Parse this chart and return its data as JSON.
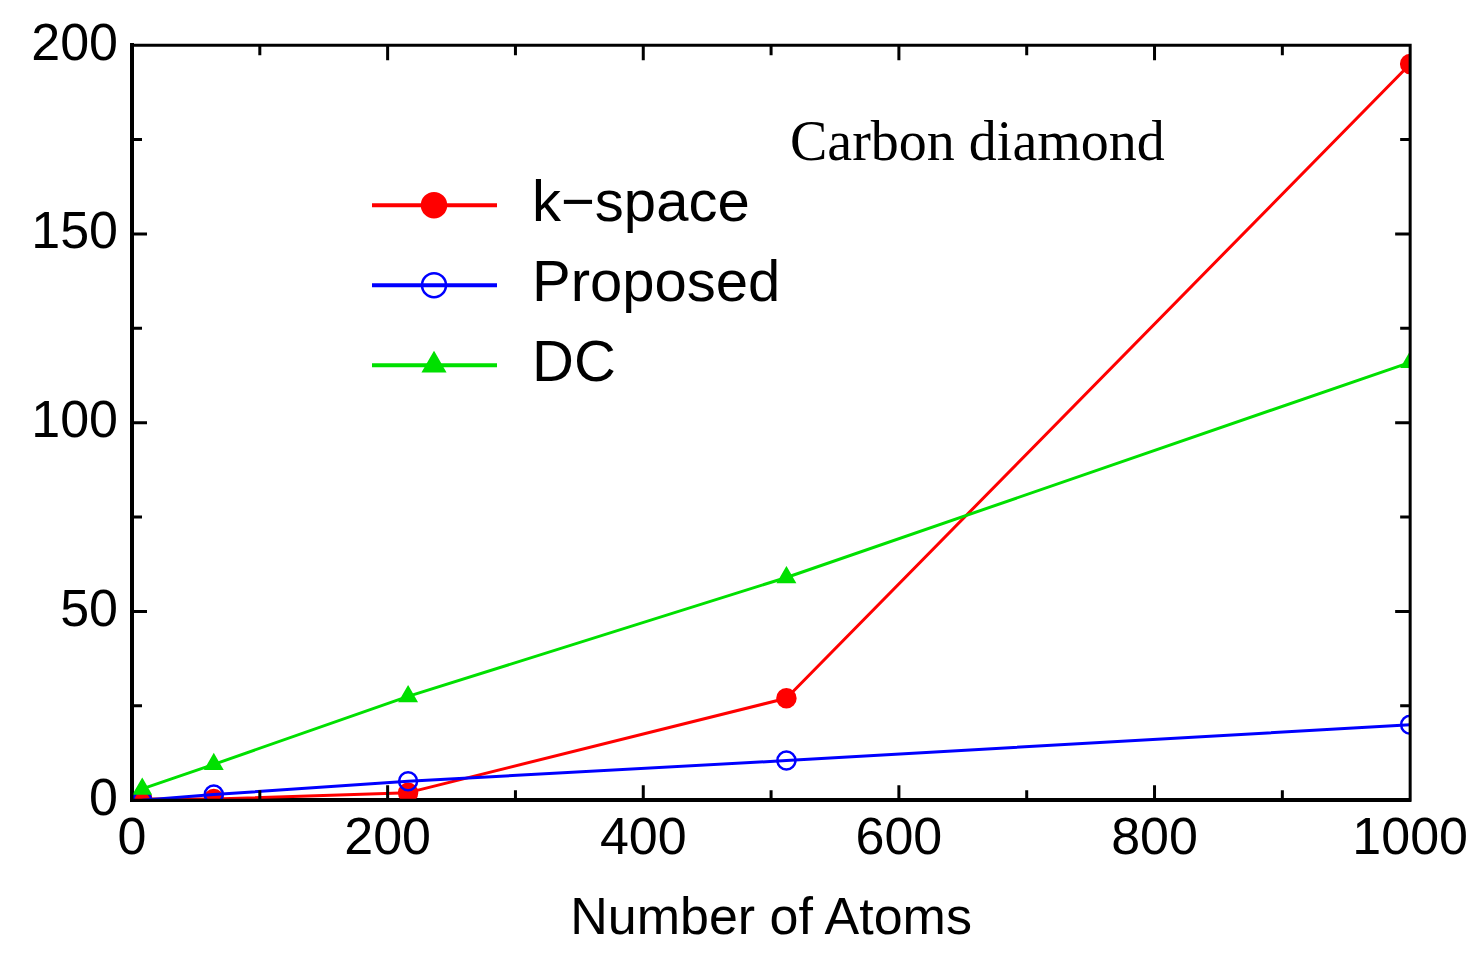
{
  "chart_data": {
    "type": "line",
    "xlabel": "Number of Atoms",
    "annotations": [
      "Carbon diamond"
    ],
    "x": [
      8,
      64,
      216,
      512,
      1000
    ],
    "series": [
      {
        "name": "k−space",
        "color": "#ff0000",
        "marker": "circle",
        "values": [
          0.3,
          0.3,
          2,
          27,
          195
        ]
      },
      {
        "name": "Proposed",
        "color": "#0000ff",
        "marker": "circle",
        "values": [
          0,
          1.5,
          5,
          10.5,
          20
        ]
      },
      {
        "name": "DC",
        "color": "#00e000",
        "marker": "triangle",
        "values": [
          3,
          9.5,
          27.5,
          59,
          116
        ]
      }
    ],
    "xlim": [
      0,
      1000
    ],
    "ylim": [
      0,
      200
    ],
    "xticks": [
      0,
      {
        "value": 100,
        "label": null
      },
      200,
      {
        "value": 300,
        "label": null
      },
      400,
      {
        "value": 500,
        "label": null
      },
      600,
      {
        "value": 700,
        "label": null
      },
      800,
      {
        "value": 900,
        "label": null
      },
      1000
    ],
    "yticks": [
      0,
      {
        "value": 25,
        "label": null
      },
      50,
      {
        "value": 75,
        "label": null
      },
      100,
      {
        "value": 125,
        "label": null
      },
      150,
      {
        "value": 175,
        "label": null
      },
      200
    ],
    "grid": false,
    "legend": "top left",
    "line_style": "solid"
  }
}
